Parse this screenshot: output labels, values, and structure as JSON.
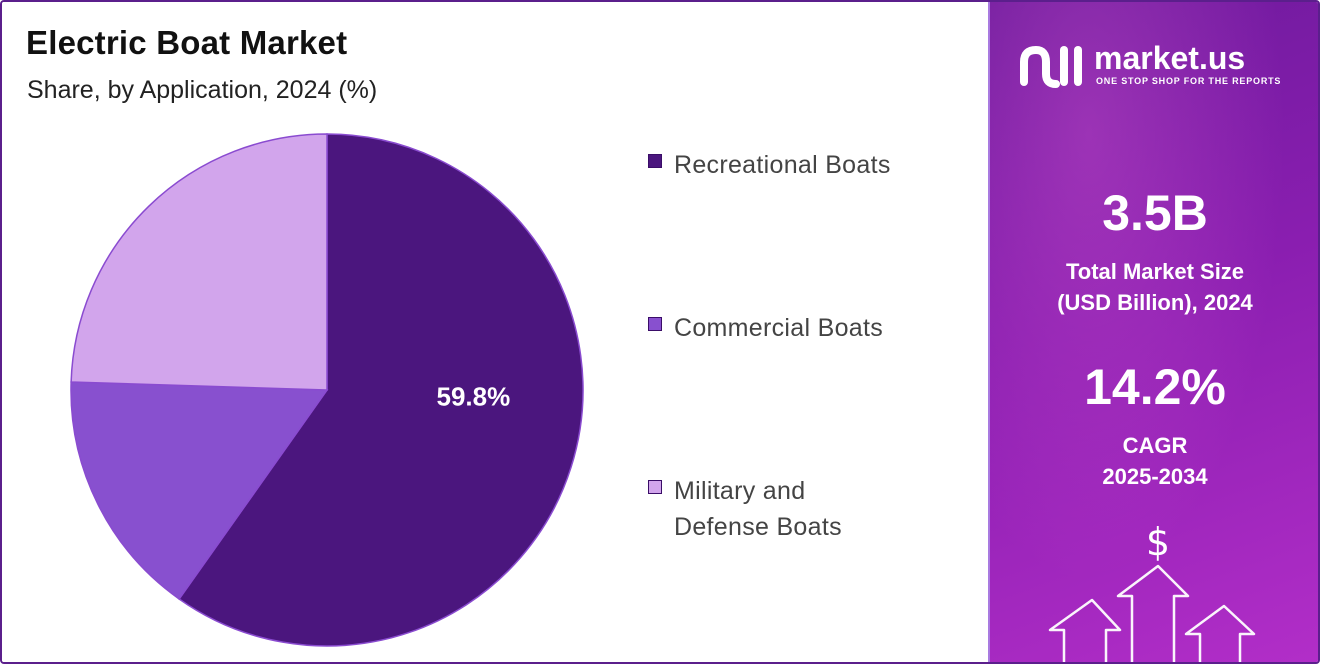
{
  "title": "Electric Boat Market",
  "subtitle": "Share, by Application, 2024 (%)",
  "chart_data": {
    "type": "pie",
    "title": "Electric Boat Market",
    "subtitle": "Share, by Application, 2024 (%)",
    "categories": [
      "Recreational Boats",
      "Commercial Boats",
      "Military and Defense Boats"
    ],
    "values": [
      59.8,
      15.7,
      24.5
    ],
    "colors": [
      "#4b167e",
      "#8850cf",
      "#d2a5ec"
    ],
    "data_labels": [
      "59.8%"
    ],
    "legend_position": "right"
  },
  "legend": {
    "items": [
      {
        "label": "Recreational Boats",
        "color": "#4b167e"
      },
      {
        "label": "Commercial Boats",
        "color": "#8850cf"
      },
      {
        "label": "Military and Defense Boats",
        "color": "#d2a5ec"
      }
    ]
  },
  "sidebar": {
    "logo_name": "market.us",
    "logo_tagline": "ONE STOP SHOP FOR THE REPORTS",
    "market_size_value": "3.5B",
    "market_size_label_line1": "Total Market Size",
    "market_size_label_line2": "(USD Billion), 2024",
    "cagr_value": "14.2%",
    "cagr_label_line1": "CAGR",
    "cagr_label_line2": "2025-2034",
    "dollar_symbol": "$"
  }
}
